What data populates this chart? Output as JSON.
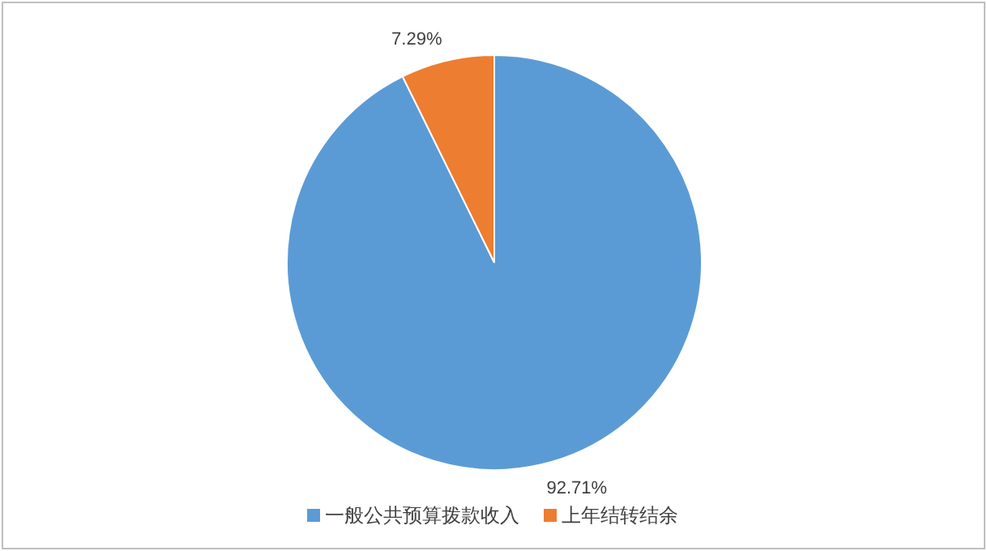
{
  "chart_data": {
    "type": "pie",
    "categories": [
      "一般公共预算拨款收入",
      "上年结转结余"
    ],
    "values": [
      92.71,
      7.29
    ],
    "colors": [
      "#5b9bd5",
      "#ed7d31"
    ],
    "value_labels": [
      "92.71%",
      "7.29%"
    ],
    "legend": "bottom"
  }
}
